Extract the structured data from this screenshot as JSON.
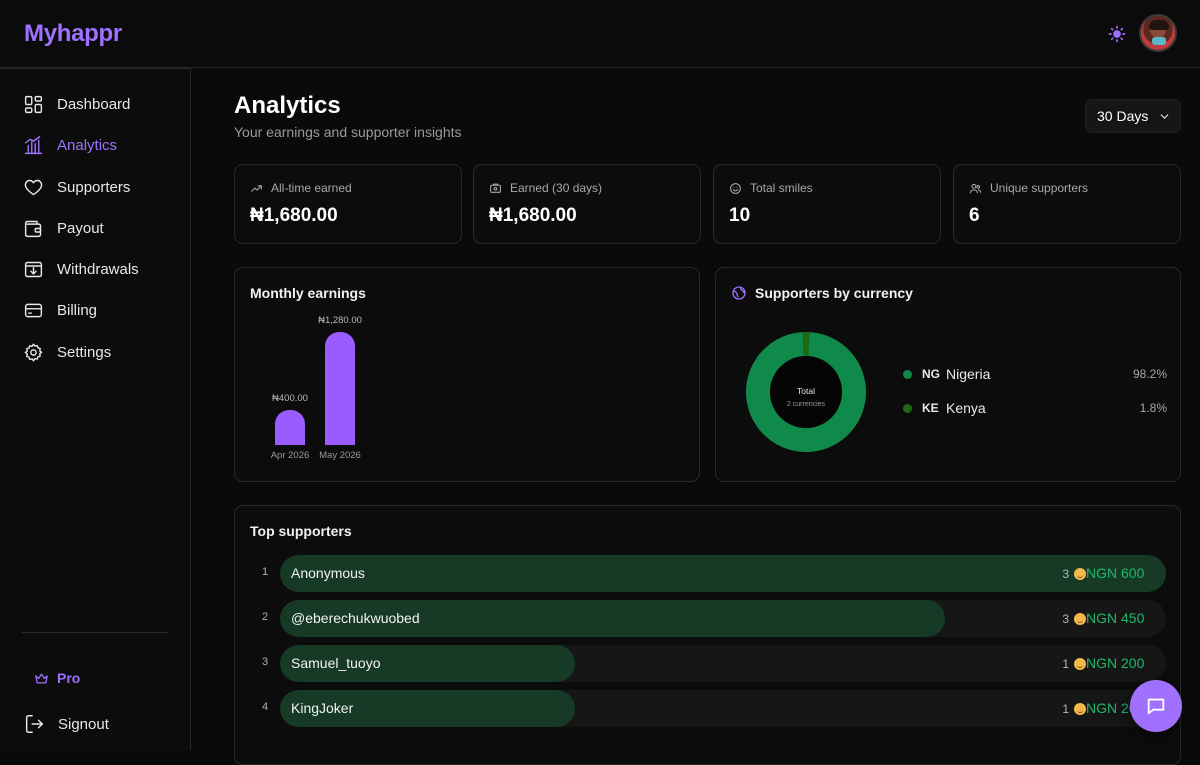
{
  "app": {
    "logo": "Myhappr"
  },
  "sidebar": {
    "items": [
      {
        "label": "Dashboard",
        "icon": "dashboard-grid-icon"
      },
      {
        "label": "Analytics",
        "icon": "analytics-icon",
        "active": true
      },
      {
        "label": "Supporters",
        "icon": "heart-icon"
      },
      {
        "label": "Payout",
        "icon": "wallet-icon"
      },
      {
        "label": "Withdrawals",
        "icon": "withdraw-icon"
      },
      {
        "label": "Billing",
        "icon": "credit-card-icon"
      },
      {
        "label": "Settings",
        "icon": "gear-icon"
      }
    ],
    "pro_label": "Pro",
    "signout_label": "Signout"
  },
  "header": {
    "title": "Analytics",
    "subtitle": "Your earnings and supporter insights",
    "range": "30 Days"
  },
  "stats": [
    {
      "label": "All-time earned",
      "value": "₦1,680.00",
      "icon": "trend-up-icon"
    },
    {
      "label": "Earned (30 days)",
      "value": "₦1,680.00",
      "icon": "cash-icon"
    },
    {
      "label": "Total smiles",
      "value": "10",
      "icon": "smile-icon"
    },
    {
      "label": "Unique supporters",
      "value": "6",
      "icon": "users-icon"
    }
  ],
  "monthly": {
    "title": "Monthly earnings"
  },
  "currency": {
    "title": "Supporters by currency",
    "center_label": "Total",
    "center_sub": "2 currencies"
  },
  "chart_data": [
    {
      "type": "bar",
      "categories": [
        "Apr 2026",
        "May 2026"
      ],
      "values": [
        400,
        1280
      ],
      "value_labels": [
        "₦400.00",
        "₦1,280.00"
      ],
      "title": "Monthly earnings",
      "ylim": [
        0,
        1280
      ]
    },
    {
      "type": "pie",
      "title": "Supporters by currency",
      "labels": [
        "Nigeria",
        "Kenya"
      ],
      "codes": [
        "NG",
        "KE"
      ],
      "values": [
        98.2,
        1.8
      ],
      "value_labels": [
        "98.2%",
        "1.8%"
      ],
      "colors": [
        "#0f8a4a",
        "#1e6a12"
      ]
    }
  ],
  "top_supporters": {
    "title": "Top supporters",
    "rows": [
      {
        "rank": "1",
        "name": "Anonymous",
        "smiles": "3",
        "amount": "NGN 600",
        "share": 1.0
      },
      {
        "rank": "2",
        "name": "@eberechukwuobed",
        "smiles": "3",
        "amount": "NGN 450",
        "share": 0.75
      },
      {
        "rank": "3",
        "name": "Samuel_tuoyo",
        "smiles": "1",
        "amount": "NGN 200",
        "share": 0.333
      },
      {
        "rank": "4",
        "name": "KingJoker",
        "smiles": "1",
        "amount": "NGN 200",
        "share": 0.333
      }
    ]
  },
  "colors": {
    "accent": "#a071ff",
    "positive": "#1fb86a",
    "bar_fill": "#163a26"
  }
}
